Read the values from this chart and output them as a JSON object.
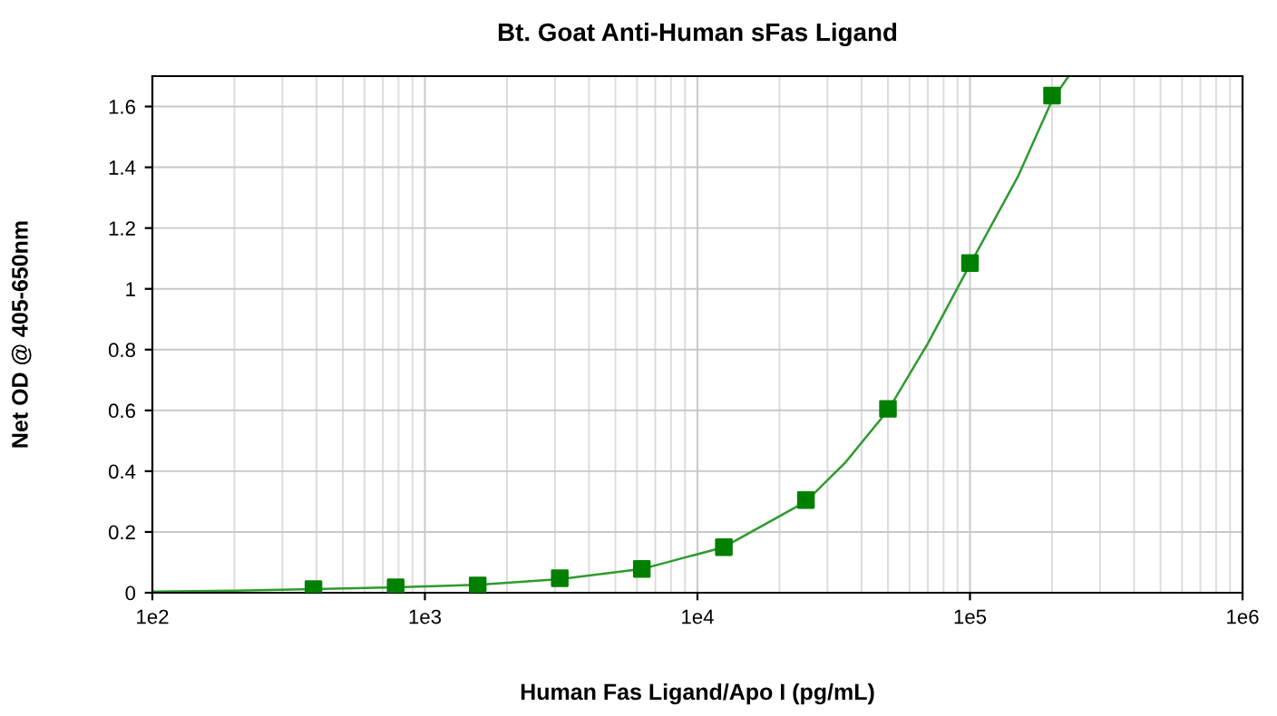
{
  "chart_data": {
    "type": "scatter",
    "title": "Bt. Goat Anti-Human sFas Ligand",
    "xlabel": "Human Fas Ligand/Apo I (pg/mL)",
    "ylabel": "Net OD @ 405-650nm",
    "log": "x",
    "grid": true,
    "marker": "square",
    "series": [
      {
        "type": "line",
        "color": "#2e9b2e",
        "marker": "none",
        "line_style": "solid",
        "x": [
          100,
          200,
          390,
          781,
          1562,
          3125,
          6250,
          12500,
          25000,
          35000,
          50000,
          70000,
          100000,
          150000,
          200000,
          230000
        ],
        "values": [
          0.004,
          0.007,
          0.012,
          0.018,
          0.026,
          0.045,
          0.078,
          0.15,
          0.3,
          0.43,
          0.6,
          0.82,
          1.08,
          1.37,
          1.62,
          1.7
        ]
      },
      {
        "color": "#008000",
        "x": [
          390,
          781,
          1562,
          3125,
          6250,
          12500,
          25000,
          50000,
          100000,
          200000
        ],
        "values": [
          0.012,
          0.018,
          0.024,
          0.048,
          0.078,
          0.15,
          0.305,
          0.605,
          1.085,
          1.636
        ]
      }
    ],
    "xlim": [
      100,
      1000000
    ],
    "xticks": [
      {
        "value": 100,
        "label": "1e2"
      },
      {
        "value": 1000,
        "label": "1e3"
      },
      {
        "value": 10000,
        "label": "1e4"
      },
      {
        "value": 100000,
        "label": "1e5"
      },
      {
        "value": 1000000,
        "label": "1e6"
      }
    ],
    "ylim": [
      0,
      1.7
    ],
    "yticks": [
      0,
      0.2,
      0.4,
      0.6,
      0.8,
      1,
      1.2,
      1.4,
      1.6
    ]
  }
}
